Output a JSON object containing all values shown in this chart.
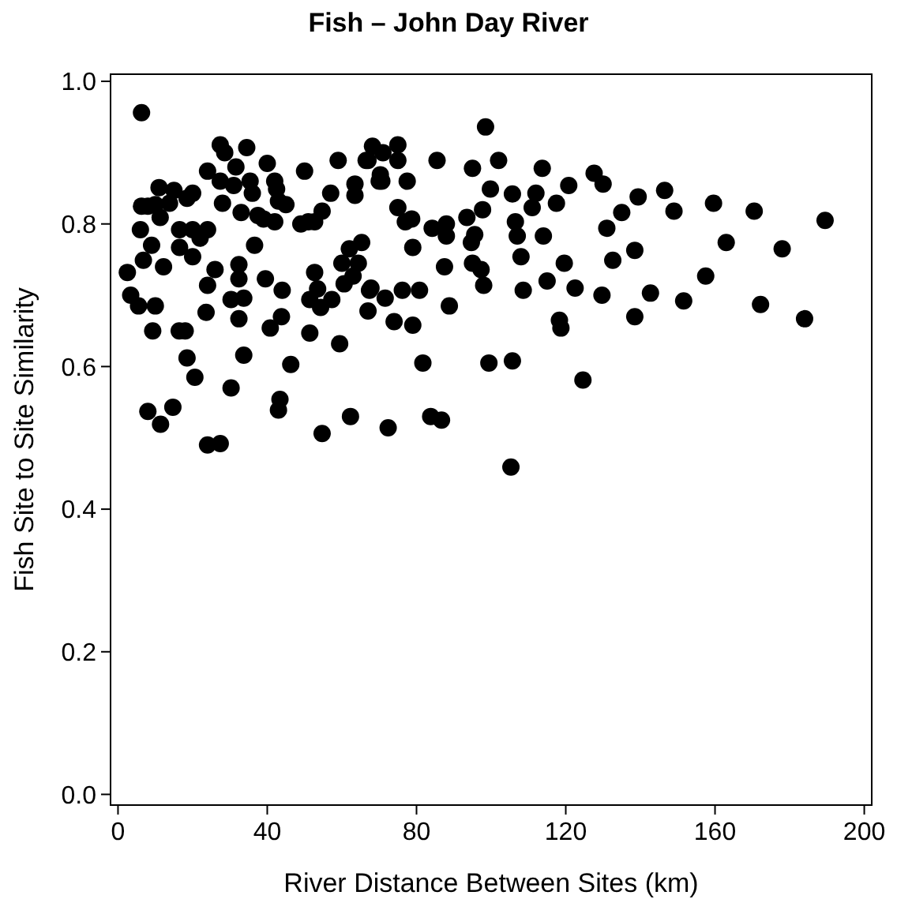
{
  "chart_data": {
    "type": "scatter",
    "title": "Fish  –  John Day River",
    "xlabel": "River Distance Between Sites (km)",
    "ylabel": "Fish Site to Site Similarity",
    "xlim": [
      -2,
      202
    ],
    "ylim": [
      -0.015,
      1.01
    ],
    "xticks": [
      0,
      40,
      80,
      120,
      160,
      200
    ],
    "yticks": [
      {
        "value": 0,
        "label": "0.0"
      },
      {
        "value": 0.2,
        "label": "0.2"
      },
      {
        "value": 0.4,
        "label": "0.4"
      },
      {
        "value": 0.6,
        "label": "0.6"
      },
      {
        "value": 0.8,
        "label": "0.8"
      },
      {
        "value": 1,
        "label": "1.0"
      }
    ],
    "marker": "circle",
    "grid": false,
    "series": [
      {
        "color": "#000000",
        "x": [
          6.3,
          27.4,
          28.6,
          34.5,
          24,
          31.6,
          40,
          27.4,
          31,
          35.4,
          42,
          50,
          59,
          66.5,
          11,
          15,
          20,
          18.5,
          6.3,
          8,
          10,
          13.8,
          11.3,
          28,
          36,
          42.5,
          43,
          45,
          33,
          37.5,
          39,
          42,
          49,
          51,
          52.7,
          54.7,
          57,
          63.5,
          63.5,
          70,
          6,
          16.5,
          20,
          24,
          22,
          9,
          16.5,
          20,
          36.6,
          6.8,
          12.2,
          2.5,
          26,
          32.4,
          32.4,
          39.5,
          24,
          52.7,
          3.4,
          5.5,
          10,
          30.3,
          33.7,
          44,
          51.4,
          53.5,
          54.3,
          57.3,
          23.6,
          32.4,
          43.8,
          9.3,
          16.4,
          18,
          40.8,
          51.4,
          59.4,
          18.5,
          33.7,
          20.6,
          46.3,
          30.3,
          8,
          14.7,
          11.4,
          43.4,
          43,
          62.3,
          54.7,
          24,
          27.4,
          65.3,
          62,
          60,
          64.4,
          63,
          60.6,
          67.4,
          67,
          98.5,
          68.2,
          75,
          71,
          67,
          75,
          85.5,
          95,
          102,
          113.7,
          127.6,
          130,
          70.3,
          70.7,
          77.5,
          99.8,
          105.7,
          112,
          120.8,
          111,
          117.5,
          75,
          77,
          78.7,
          84.2,
          88,
          88,
          93.5,
          97.7,
          106.5,
          107,
          114,
          131,
          135,
          94.7,
          95.6,
          79,
          108,
          87.5,
          95,
          97.3,
          119.6,
          132.6,
          67.8,
          71.6,
          76.2,
          80.8,
          98,
          108.6,
          115,
          122.5,
          129.7,
          74,
          79,
          88.8,
          118.3,
          118.7,
          81.7,
          99.4,
          105.7,
          124.6,
          72.4,
          83.8,
          86.7,
          105.3,
          139.4,
          146.5,
          149,
          159.6,
          170.5,
          189.5,
          138.5,
          163,
          178,
          157.5,
          142.7,
          151.6,
          138.5,
          172.2,
          184
        ],
        "values": [
          0.956,
          0.911,
          0.9,
          0.907,
          0.874,
          0.88,
          0.885,
          0.86,
          0.854,
          0.86,
          0.86,
          0.874,
          0.889,
          0.889,
          0.851,
          0.847,
          0.843,
          0.836,
          0.825,
          0.825,
          0.827,
          0.829,
          0.809,
          0.829,
          0.843,
          0.849,
          0.832,
          0.827,
          0.816,
          0.812,
          0.807,
          0.803,
          0.8,
          0.803,
          0.803,
          0.818,
          0.843,
          0.856,
          0.84,
          0.86,
          0.792,
          0.792,
          0.792,
          0.792,
          0.78,
          0.77,
          0.767,
          0.754,
          0.77,
          0.749,
          0.74,
          0.732,
          0.736,
          0.743,
          0.723,
          0.723,
          0.714,
          0.732,
          0.7,
          0.685,
          0.685,
          0.694,
          0.696,
          0.707,
          0.694,
          0.709,
          0.683,
          0.694,
          0.676,
          0.667,
          0.67,
          0.65,
          0.65,
          0.65,
          0.654,
          0.647,
          0.632,
          0.612,
          0.616,
          0.585,
          0.603,
          0.57,
          0.537,
          0.543,
          0.519,
          0.554,
          0.539,
          0.53,
          0.506,
          0.49,
          0.492,
          0.774,
          0.765,
          0.745,
          0.745,
          0.727,
          0.716,
          0.707,
          0.678,
          0.936,
          0.909,
          0.911,
          0.9,
          0.889,
          0.889,
          0.889,
          0.878,
          0.889,
          0.878,
          0.871,
          0.856,
          0.869,
          0.86,
          0.86,
          0.849,
          0.842,
          0.843,
          0.854,
          0.823,
          0.829,
          0.823,
          0.803,
          0.807,
          0.794,
          0.8,
          0.783,
          0.809,
          0.82,
          0.803,
          0.783,
          0.783,
          0.794,
          0.816,
          0.774,
          0.785,
          0.767,
          0.754,
          0.74,
          0.745,
          0.736,
          0.745,
          0.749,
          0.71,
          0.696,
          0.707,
          0.707,
          0.714,
          0.707,
          0.72,
          0.71,
          0.7,
          0.663,
          0.658,
          0.685,
          0.665,
          0.654,
          0.605,
          0.605,
          0.608,
          0.581,
          0.514,
          0.53,
          0.525,
          0.459,
          0.838,
          0.847,
          0.818,
          0.829,
          0.818,
          0.805,
          0.763,
          0.774,
          0.765,
          0.727,
          0.703,
          0.692,
          0.67,
          0.687,
          0.667
        ]
      }
    ]
  }
}
